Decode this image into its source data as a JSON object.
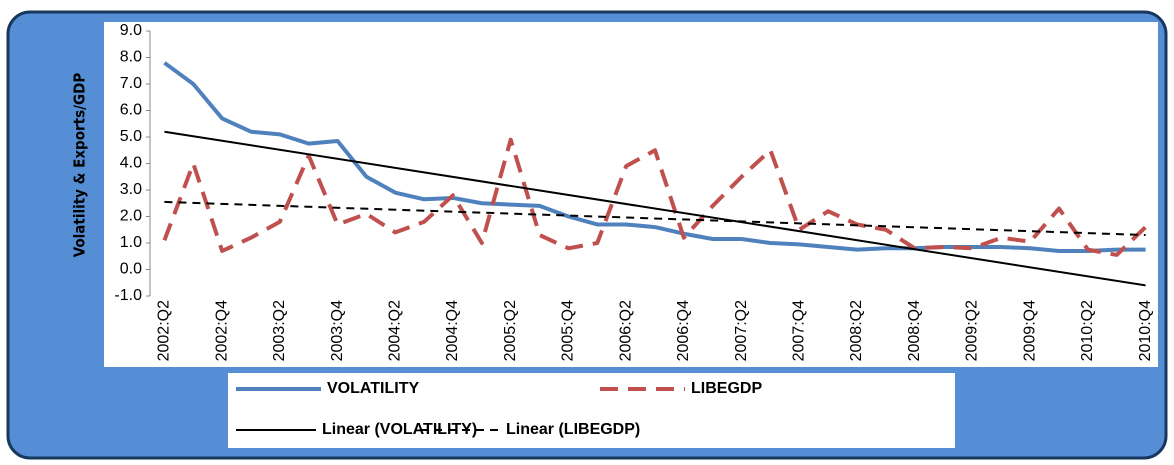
{
  "chart_data": {
    "type": "line",
    "y_label": "Volatility & Exports/GDP",
    "categories": [
      "2002:Q2",
      null,
      "2002:Q4",
      null,
      "2003:Q2",
      null,
      "2003:Q4",
      null,
      "2004:Q2",
      null,
      "2004:Q4",
      null,
      "2005:Q2",
      null,
      "2005:Q4",
      null,
      "2006:Q2",
      null,
      "2006:Q4",
      null,
      "2007:Q2",
      null,
      "2007:Q4",
      null,
      "2008:Q2",
      null,
      "2008:Q4",
      null,
      "2009:Q2",
      null,
      "2009:Q4",
      null,
      "2010:Q2",
      null,
      "2010:Q4"
    ],
    "series": [
      {
        "name": "VOLATILITY",
        "color": "#4f81bd",
        "dash": "solid",
        "values": [
          7.8,
          7.0,
          5.7,
          5.2,
          5.1,
          4.75,
          4.85,
          3.5,
          2.9,
          2.65,
          2.7,
          2.5,
          2.45,
          2.4,
          2.0,
          1.7,
          1.7,
          1.6,
          1.35,
          1.15,
          1.15,
          1.0,
          0.95,
          0.85,
          0.75,
          0.8,
          0.8,
          0.85,
          0.85,
          0.85,
          0.8,
          0.7,
          0.7,
          0.75,
          0.75
        ]
      },
      {
        "name": "LIBEGDP",
        "color": "#c0504d",
        "dash": "dashed",
        "values": [
          1.1,
          4.0,
          0.7,
          1.2,
          1.8,
          4.3,
          1.7,
          2.1,
          1.4,
          1.8,
          2.8,
          1.0,
          4.9,
          1.3,
          0.8,
          1.0,
          3.9,
          4.5,
          1.2,
          2.4,
          3.5,
          4.5,
          1.5,
          2.2,
          1.7,
          1.5,
          0.8,
          0.85,
          0.8,
          1.2,
          1.05,
          2.3,
          0.75,
          0.55,
          1.6
        ]
      }
    ],
    "trendlines": [
      {
        "name": "Linear (VOLATILITY)",
        "color": "#000000",
        "dash": "solid",
        "ends": [
          5.2,
          -0.6
        ]
      },
      {
        "name": "Linear (LIBEGDP)",
        "color": "#000000",
        "dash": "dashed",
        "ends": [
          2.55,
          1.3
        ]
      }
    ],
    "ylim": [
      -1,
      9
    ],
    "yticks": [
      {
        "value": -1,
        "label": "-1.0"
      },
      {
        "value": 0,
        "label": "0.0"
      },
      {
        "value": 1,
        "label": "1.0"
      },
      {
        "value": 2,
        "label": "2.0"
      },
      {
        "value": 3,
        "label": "3.0"
      },
      {
        "value": 4,
        "label": "4.0"
      },
      {
        "value": 5,
        "label": "5.0"
      },
      {
        "value": 6,
        "label": "6.0"
      },
      {
        "value": 7,
        "label": "7.0"
      },
      {
        "value": 8,
        "label": "8.0"
      },
      {
        "value": 9,
        "label": "9.0"
      }
    ],
    "grid": false
  }
}
